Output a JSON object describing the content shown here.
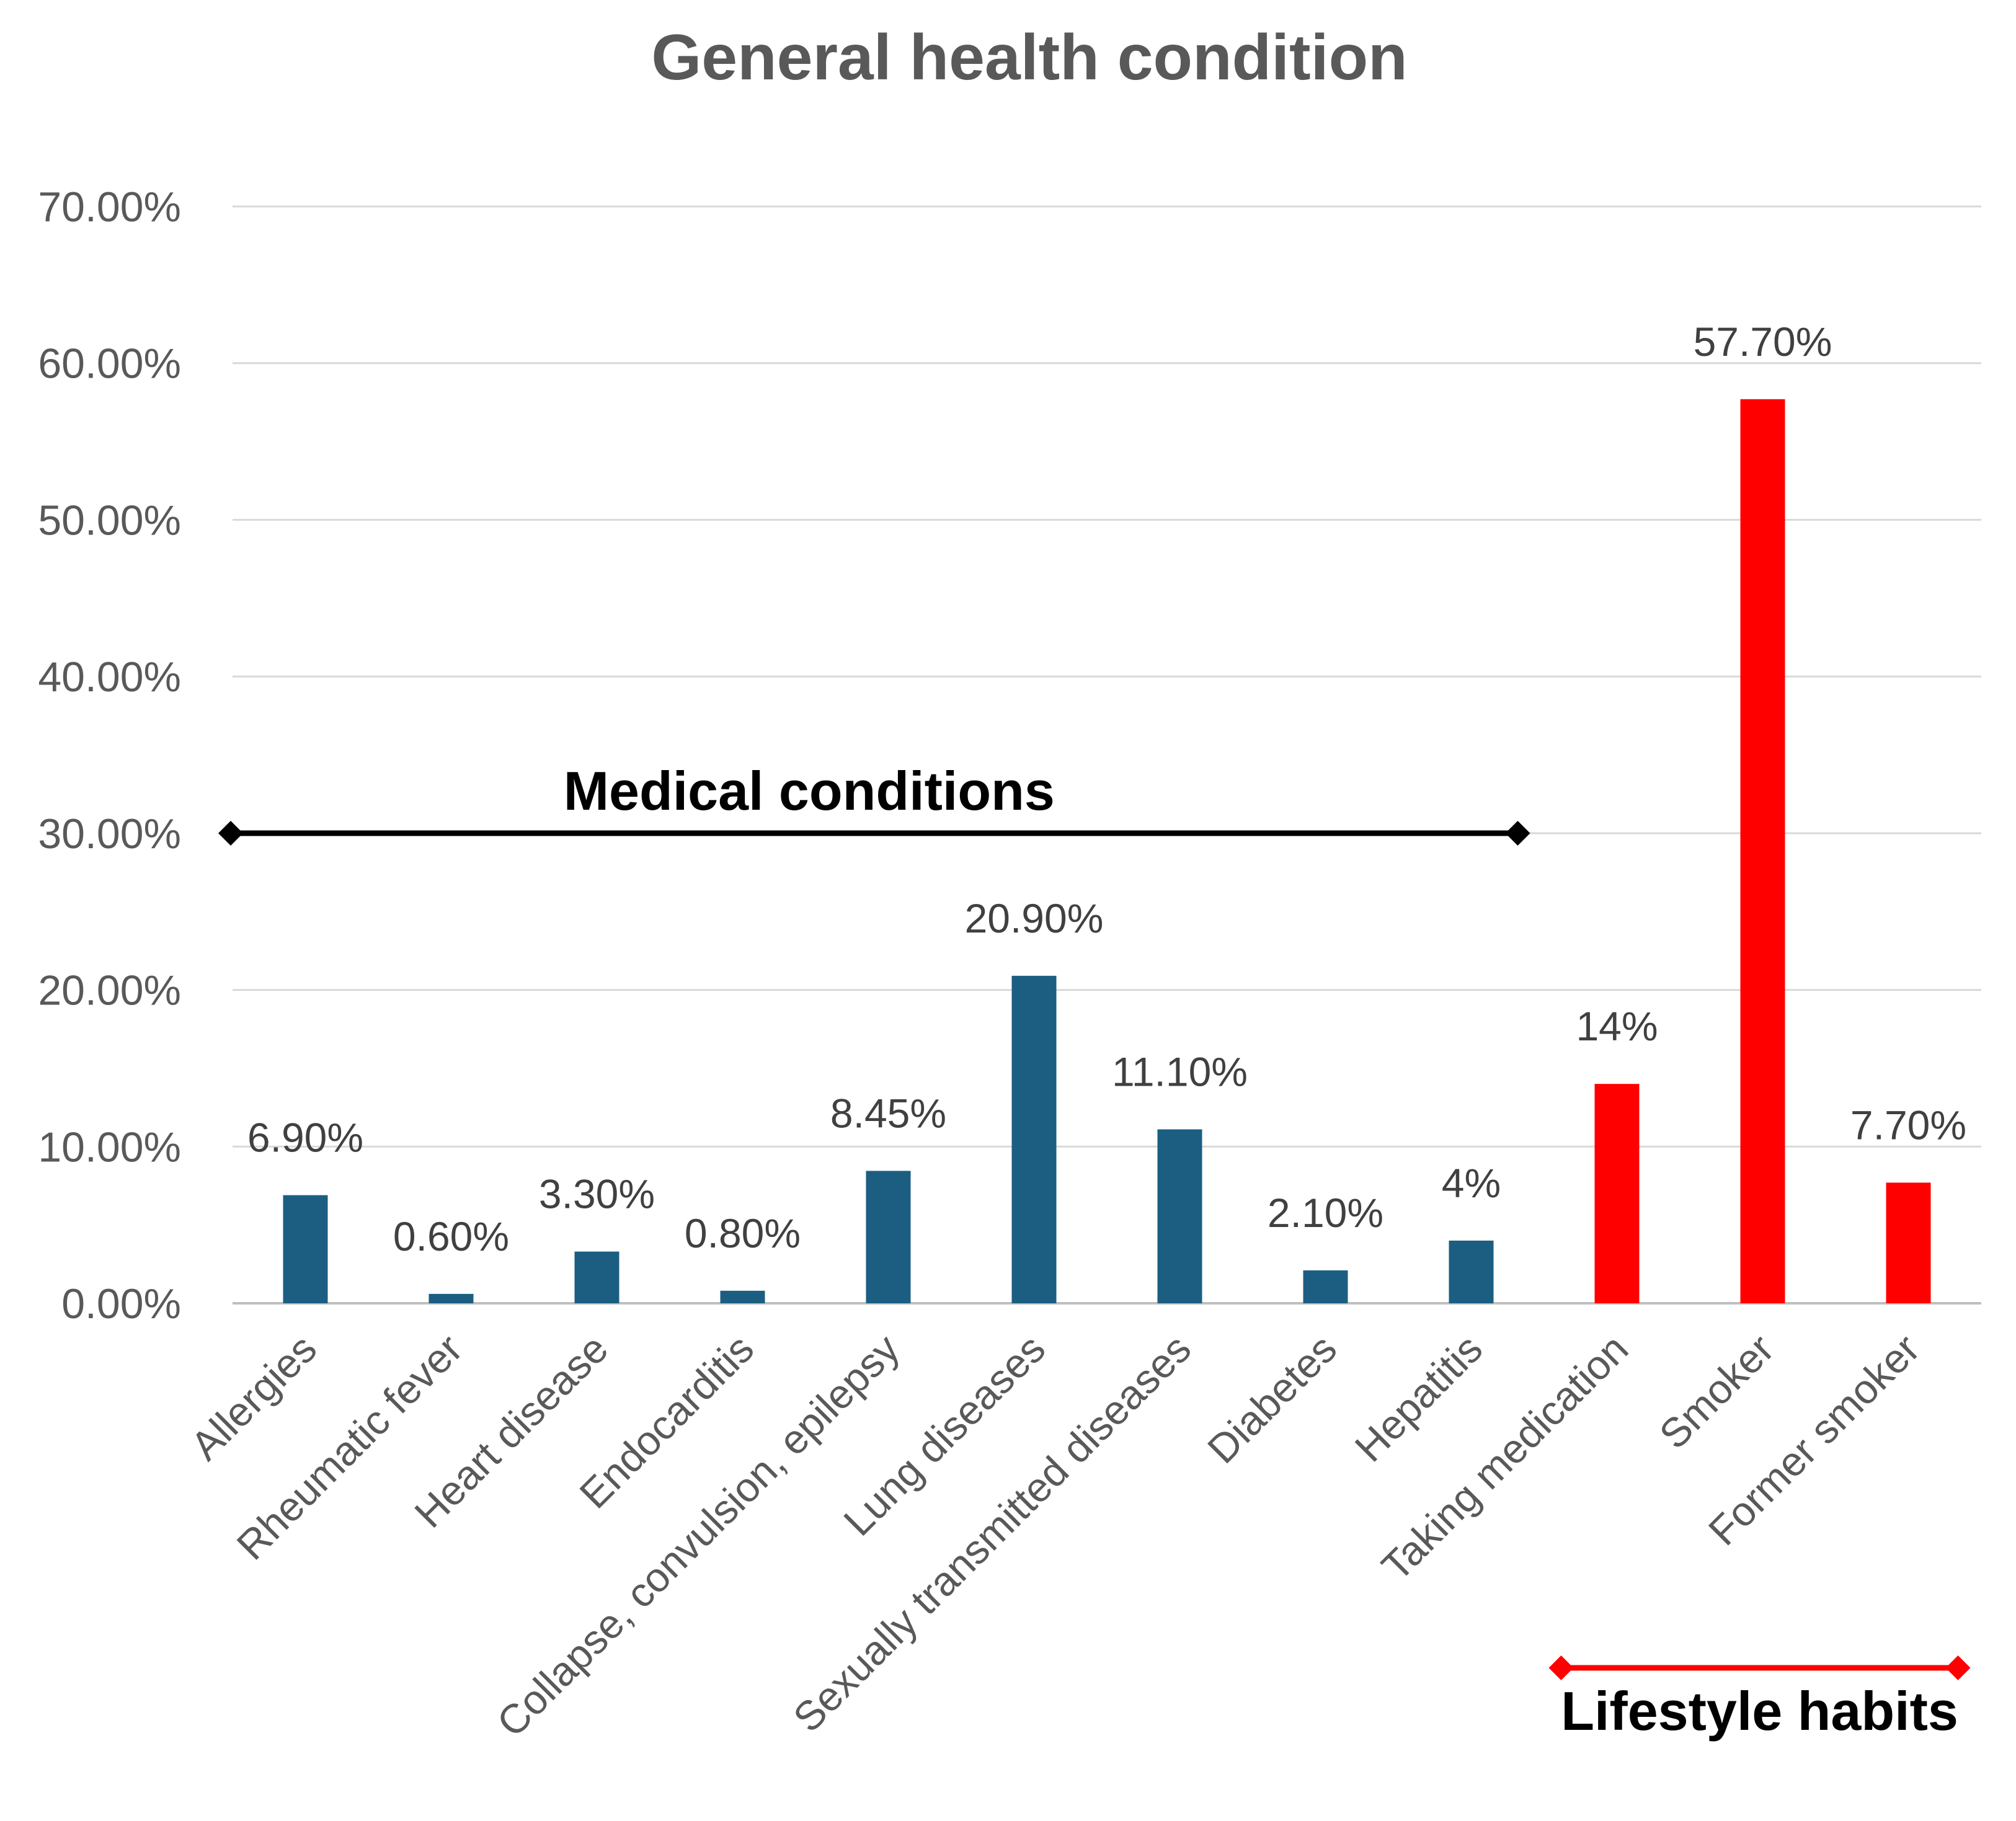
{
  "chart_data": {
    "type": "bar",
    "title": "General health condition",
    "xlabel": "",
    "ylabel": "",
    "ylim": [
      0,
      70
    ],
    "yticks": [
      "0.00%",
      "10.00%",
      "20.00%",
      "30.00%",
      "40.00%",
      "50.00%",
      "60.00%",
      "70.00%"
    ],
    "grid": true,
    "legend": "none",
    "categories": [
      "Allergies",
      "Rheumatic fever",
      "Heart disease",
      "Endocarditis",
      "Collapse, convulsion, epilepsy",
      "Lung diseases",
      "Sexually transmitted diseases",
      "Diabetes",
      "Hepatitis",
      "Taking medication",
      "Smoker",
      "Former smoker"
    ],
    "values": [
      6.9,
      0.6,
      3.3,
      0.8,
      8.45,
      20.9,
      11.1,
      2.1,
      4,
      14,
      57.7,
      7.7
    ],
    "data_labels": [
      "6.90%",
      "0.60%",
      "3.30%",
      "0.80%",
      "8.45%",
      "20.90%",
      "11.10%",
      "2.10%",
      "4%",
      "14%",
      "57.70%",
      "7.70%"
    ],
    "colors": [
      "#1b5e82",
      "#1b5e82",
      "#1b5e82",
      "#1b5e82",
      "#1b5e82",
      "#1b5e82",
      "#1b5e82",
      "#1b5e82",
      "#1b5e82",
      "#ff0000",
      "#ff0000",
      "#ff0000"
    ],
    "annotations": [
      {
        "text": "Medical conditions",
        "at_value": 30,
        "spans": [
          "Allergies",
          "Hepatitis"
        ],
        "color": "#000000"
      },
      {
        "text": "Lifestyle habits",
        "position": "below-axis",
        "spans": [
          "Taking medication",
          "Former smoker"
        ],
        "color": "#ff0000"
      }
    ]
  }
}
